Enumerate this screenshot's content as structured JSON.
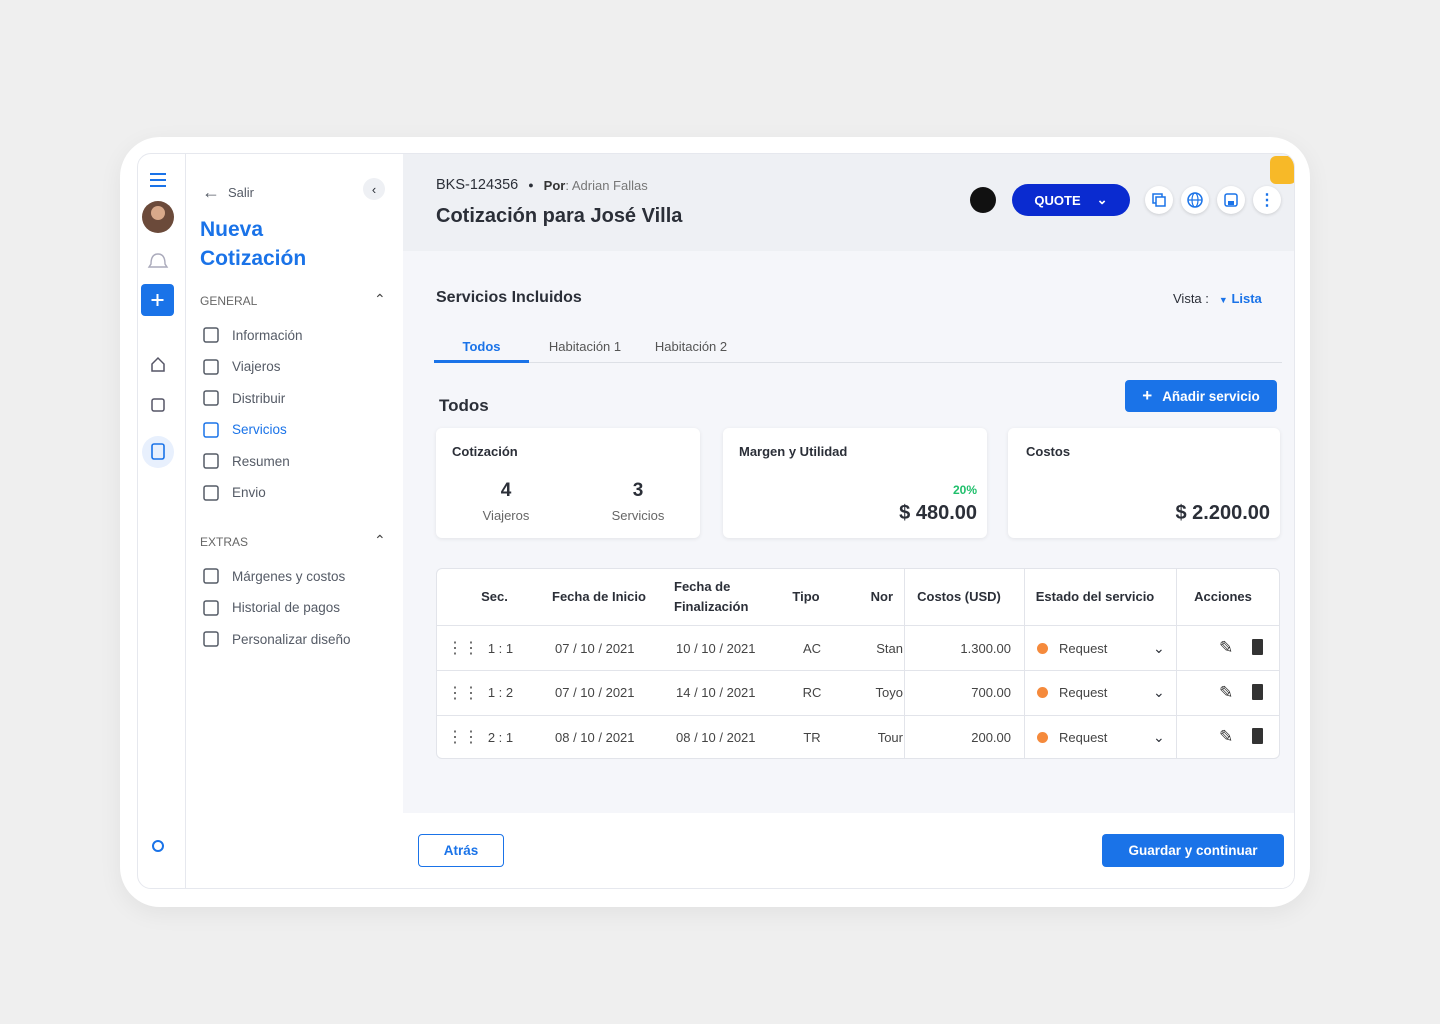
{
  "sidebar": {
    "back": "Salir",
    "title": "Nueva Cotización",
    "groups": [
      {
        "label": "GENERAL",
        "items": [
          "Información",
          "Viajeros",
          "Distribuir",
          "Servicios",
          "Resumen",
          "Envio"
        ],
        "active": 3
      },
      {
        "label": "EXTRAS",
        "items": [
          "Márgenes y costos",
          "Historial de pagos",
          "Personalizar diseño"
        ]
      }
    ]
  },
  "header": {
    "code": "BKS-124356",
    "author_label": "Por",
    "author": ": Adrian Fallas",
    "title": "Cotización para José Villa",
    "status_button": "QUOTE"
  },
  "section": {
    "title": "Servicios Incluidos",
    "view_label": "Vista :",
    "view_value": "Lista",
    "tabs": [
      "Todos",
      "Habitación 1",
      "Habitación 2"
    ],
    "active_tab": 0,
    "subtitle": "Todos",
    "add_button": "Añadir servicio"
  },
  "cards": {
    "quote": {
      "title": "Cotización",
      "travelers": "4",
      "travelers_label": "Viajeros",
      "services": "3",
      "services_label": "Servicios"
    },
    "margin": {
      "title": "Margen y Utilidad",
      "percent": "20%",
      "amount": "$ 480.00"
    },
    "costs": {
      "title": "Costos",
      "amount": "$ 2.200.00"
    }
  },
  "table": {
    "headers": [
      "Sec.",
      "Fecha de Inicio",
      "Fecha de Finalización",
      "Tipo",
      "Nor",
      "Costos (USD)",
      "Estado del servicio",
      "Acciones"
    ],
    "rows": [
      [
        "1 : 1",
        "07 / 10 / 2021",
        "10 / 10 / 2021",
        "AC",
        "Stan",
        "1.300.00",
        "Request"
      ],
      [
        "1 : 2",
        "07 / 10 / 2021",
        "14 / 10 / 2021",
        "RC",
        "Toyo",
        "700.00",
        "Request"
      ],
      [
        "2 : 1",
        "08 / 10 / 2021",
        "08 / 10 / 2021",
        "TR",
        "Tour",
        "200.00",
        "Request"
      ]
    ]
  },
  "footer": {
    "back": "Atrás",
    "next": "Guardar y continuar"
  }
}
